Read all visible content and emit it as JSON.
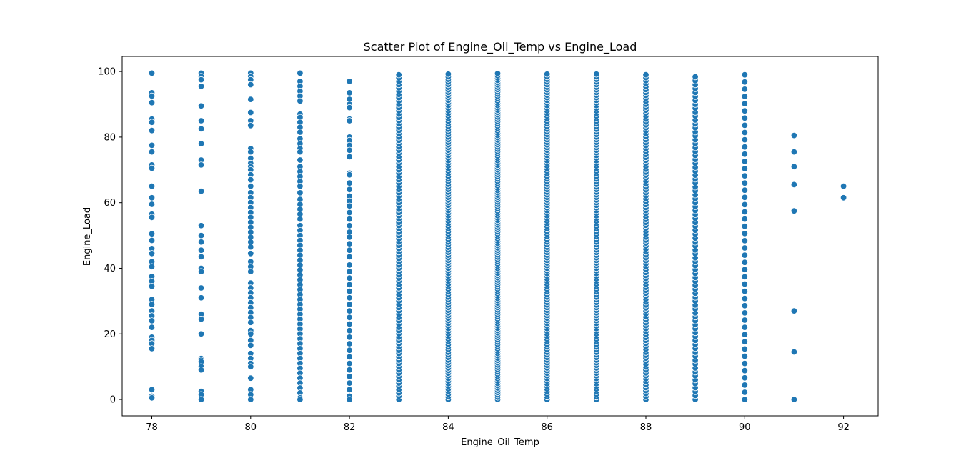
{
  "chart_data": {
    "type": "scatter",
    "title": "Scatter Plot of Engine_Oil_Temp vs Engine_Load",
    "xlabel": "Engine_Oil_Temp",
    "ylabel": "Engine_Load",
    "xlim": [
      77.4,
      92.7
    ],
    "ylim": [
      -5,
      104.6
    ],
    "xticks": [
      78,
      80,
      82,
      84,
      86,
      88,
      90,
      92
    ],
    "yticks": [
      0,
      20,
      40,
      60,
      80,
      100
    ],
    "grid": false,
    "point_color": "#1f77b4",
    "series": [
      {
        "points": [
          [
            78,
            99.5
          ],
          [
            78,
            93.5
          ],
          [
            78,
            92.5
          ],
          [
            78,
            90.5
          ],
          [
            78,
            85.5
          ],
          [
            78,
            84.5
          ],
          [
            78,
            82.0
          ],
          [
            78,
            77.5
          ],
          [
            78,
            75.5
          ],
          [
            78,
            71.5
          ],
          [
            78,
            70.5
          ],
          [
            78,
            65.0
          ],
          [
            78,
            61.5
          ],
          [
            78,
            59.5
          ],
          [
            78,
            56.5
          ],
          [
            78,
            55.5
          ],
          [
            78,
            50.5
          ],
          [
            78,
            48.5
          ],
          [
            78,
            46.0
          ],
          [
            78,
            44.5
          ],
          [
            78,
            42.0
          ],
          [
            78,
            40.5
          ],
          [
            78,
            37.5
          ],
          [
            78,
            36.0
          ],
          [
            78,
            34.5
          ],
          [
            78,
            30.5
          ],
          [
            78,
            29.0
          ],
          [
            78,
            27.0
          ],
          [
            78,
            25.5
          ],
          [
            78,
            24.0
          ],
          [
            78,
            22.0
          ],
          [
            78,
            19.0
          ],
          [
            78,
            18.0
          ],
          [
            78,
            17.0
          ],
          [
            78,
            15.5
          ],
          [
            78,
            3.0
          ],
          [
            78,
            1.0
          ],
          [
            78,
            0.5
          ],
          [
            79,
            99.5
          ],
          [
            79,
            98.5
          ],
          [
            79,
            97.5
          ],
          [
            79,
            95.5
          ],
          [
            79,
            89.5
          ],
          [
            79,
            85.0
          ],
          [
            79,
            82.5
          ],
          [
            79,
            78.0
          ],
          [
            79,
            73.0
          ],
          [
            79,
            71.5
          ],
          [
            79,
            63.5
          ],
          [
            79,
            53.0
          ],
          [
            79,
            50.0
          ],
          [
            79,
            48.0
          ],
          [
            79,
            45.5
          ],
          [
            79,
            43.5
          ],
          [
            79,
            40.0
          ],
          [
            79,
            39.0
          ],
          [
            79,
            34.0
          ],
          [
            79,
            31.0
          ],
          [
            79,
            26.0
          ],
          [
            79,
            24.5
          ],
          [
            79,
            20.0
          ],
          [
            79,
            12.5
          ],
          [
            79,
            12.0
          ],
          [
            79,
            11.5
          ],
          [
            79,
            10.0
          ],
          [
            79,
            9.0
          ],
          [
            79,
            2.5
          ],
          [
            79,
            1.5
          ],
          [
            79,
            0.0
          ],
          [
            80,
            99.5
          ],
          [
            80,
            98.5
          ],
          [
            80,
            97.5
          ],
          [
            80,
            96.0
          ],
          [
            80,
            91.5
          ],
          [
            80,
            87.5
          ],
          [
            80,
            85.0
          ],
          [
            80,
            83.5
          ],
          [
            80,
            76.5
          ],
          [
            80,
            75.5
          ],
          [
            80,
            73.5
          ],
          [
            80,
            72.0
          ],
          [
            80,
            71.0
          ],
          [
            80,
            70.0
          ],
          [
            80,
            68.5
          ],
          [
            80,
            67.0
          ],
          [
            80,
            65.0
          ],
          [
            80,
            63.0
          ],
          [
            80,
            61.5
          ],
          [
            80,
            60.0
          ],
          [
            80,
            58.5
          ],
          [
            80,
            57.0
          ],
          [
            80,
            55.5
          ],
          [
            80,
            54.0
          ],
          [
            80,
            52.5
          ],
          [
            80,
            51.0
          ],
          [
            80,
            49.5
          ],
          [
            80,
            48.0
          ],
          [
            80,
            46.5
          ],
          [
            80,
            44.5
          ],
          [
            80,
            42.0
          ],
          [
            80,
            40.5
          ],
          [
            80,
            39.0
          ],
          [
            80,
            35.5
          ],
          [
            80,
            34.0
          ],
          [
            80,
            32.5
          ],
          [
            80,
            31.0
          ],
          [
            80,
            29.5
          ],
          [
            80,
            28.0
          ],
          [
            80,
            26.5
          ],
          [
            80,
            25.0
          ],
          [
            80,
            23.5
          ],
          [
            80,
            21.0
          ],
          [
            80,
            20.0
          ],
          [
            80,
            18.0
          ],
          [
            80,
            16.5
          ],
          [
            80,
            14.0
          ],
          [
            80,
            12.5
          ],
          [
            80,
            11.0
          ],
          [
            80,
            10.0
          ],
          [
            80,
            6.5
          ],
          [
            80,
            3.0
          ],
          [
            80,
            1.5
          ],
          [
            80,
            0.0
          ],
          [
            81,
            99.5
          ],
          [
            81,
            97.0
          ],
          [
            81,
            95.5
          ],
          [
            81,
            94.0
          ],
          [
            81,
            92.5
          ],
          [
            81,
            91.0
          ],
          [
            81,
            87.0
          ],
          [
            81,
            86.0
          ],
          [
            81,
            84.5
          ],
          [
            81,
            83.0
          ],
          [
            81,
            81.5
          ],
          [
            81,
            79.5
          ],
          [
            81,
            78.0
          ],
          [
            81,
            76.5
          ],
          [
            81,
            75.5
          ],
          [
            81,
            73.0
          ],
          [
            81,
            71.0
          ],
          [
            81,
            69.5
          ],
          [
            81,
            68.0
          ],
          [
            81,
            66.5
          ],
          [
            81,
            65.0
          ],
          [
            81,
            63.0
          ],
          [
            81,
            61.0
          ],
          [
            81,
            59.5
          ],
          [
            81,
            58.0
          ],
          [
            81,
            56.5
          ],
          [
            81,
            55.0
          ],
          [
            81,
            53.0
          ],
          [
            81,
            51.5
          ],
          [
            81,
            50.0
          ],
          [
            81,
            48.5
          ],
          [
            81,
            47.0
          ],
          [
            81,
            45.5
          ],
          [
            81,
            44.0
          ],
          [
            81,
            42.5
          ],
          [
            81,
            41.0
          ],
          [
            81,
            39.5
          ],
          [
            81,
            38.0
          ],
          [
            81,
            36.5
          ],
          [
            81,
            35.0
          ],
          [
            81,
            33.5
          ],
          [
            81,
            32.0
          ],
          [
            81,
            30.5
          ],
          [
            81,
            29.0
          ],
          [
            81,
            27.5
          ],
          [
            81,
            26.0
          ],
          [
            81,
            24.5
          ],
          [
            81,
            23.0
          ],
          [
            81,
            21.5
          ],
          [
            81,
            20.0
          ],
          [
            81,
            18.5
          ],
          [
            81,
            17.0
          ],
          [
            81,
            15.5
          ],
          [
            81,
            14.0
          ],
          [
            81,
            12.5
          ],
          [
            81,
            11.0
          ],
          [
            81,
            9.5
          ],
          [
            81,
            8.0
          ],
          [
            81,
            6.5
          ],
          [
            81,
            5.0
          ],
          [
            81,
            3.5
          ],
          [
            81,
            2.0
          ],
          [
            81,
            0.5
          ],
          [
            81,
            0.0
          ],
          [
            82,
            97.0
          ],
          [
            82,
            93.5
          ],
          [
            82,
            91.5
          ],
          [
            82,
            90.0
          ],
          [
            82,
            89.0
          ],
          [
            82,
            85.5
          ],
          [
            82,
            85.0
          ],
          [
            82,
            80.0
          ],
          [
            82,
            79.0
          ],
          [
            82,
            77.5
          ],
          [
            82,
            76.0
          ],
          [
            82,
            74.0
          ],
          [
            82,
            69.0
          ],
          [
            82,
            68.5
          ],
          [
            82,
            66.0
          ],
          [
            82,
            64.0
          ],
          [
            82,
            62.0
          ],
          [
            82,
            60.5
          ],
          [
            82,
            59.0
          ],
          [
            82,
            57.0
          ],
          [
            82,
            55.0
          ],
          [
            82,
            53.0
          ],
          [
            82,
            51.0
          ],
          [
            82,
            49.5
          ],
          [
            82,
            47.5
          ],
          [
            82,
            45.5
          ],
          [
            82,
            43.5
          ],
          [
            82,
            41.0
          ],
          [
            82,
            39.0
          ],
          [
            82,
            37.0
          ],
          [
            82,
            35.0
          ],
          [
            82,
            33.0
          ],
          [
            82,
            31.0
          ],
          [
            82,
            29.0
          ],
          [
            82,
            27.0
          ],
          [
            82,
            25.0
          ],
          [
            82,
            23.0
          ],
          [
            82,
            21.0
          ],
          [
            82,
            19.0
          ],
          [
            82,
            17.0
          ],
          [
            82,
            15.0
          ],
          [
            82,
            13.0
          ],
          [
            82,
            11.0
          ],
          [
            82,
            9.0
          ],
          [
            82,
            7.0
          ],
          [
            82,
            5.0
          ],
          [
            82,
            3.0
          ],
          [
            82,
            1.0
          ],
          [
            82,
            0.0
          ],
          [
            91,
            80.5
          ],
          [
            91,
            75.5
          ],
          [
            91,
            71.0
          ],
          [
            91,
            65.5
          ],
          [
            91,
            57.5
          ],
          [
            91,
            27.0
          ],
          [
            91,
            14.5
          ],
          [
            91,
            0.0
          ],
          [
            92,
            65.0
          ],
          [
            92,
            61.5
          ]
        ]
      }
    ],
    "dense_columns": [
      {
        "x": 83,
        "ymin": 0,
        "ymax": 99.5,
        "step": 1.0
      },
      {
        "x": 84,
        "ymin": 0,
        "ymax": 99.5,
        "step": 0.8
      },
      {
        "x": 85,
        "ymin": 0,
        "ymax": 99.5,
        "step": 0.7
      },
      {
        "x": 86,
        "ymin": 0,
        "ymax": 99.5,
        "step": 0.8
      },
      {
        "x": 87,
        "ymin": 0,
        "ymax": 99.5,
        "step": 0.8
      },
      {
        "x": 88,
        "ymin": 0,
        "ymax": 99.5,
        "step": 0.9
      },
      {
        "x": 89,
        "ymin": 0,
        "ymax": 99.5,
        "step": 1.2
      },
      {
        "x": 90,
        "ymin": 0,
        "ymax": 99.5,
        "step": 2.2
      }
    ]
  }
}
